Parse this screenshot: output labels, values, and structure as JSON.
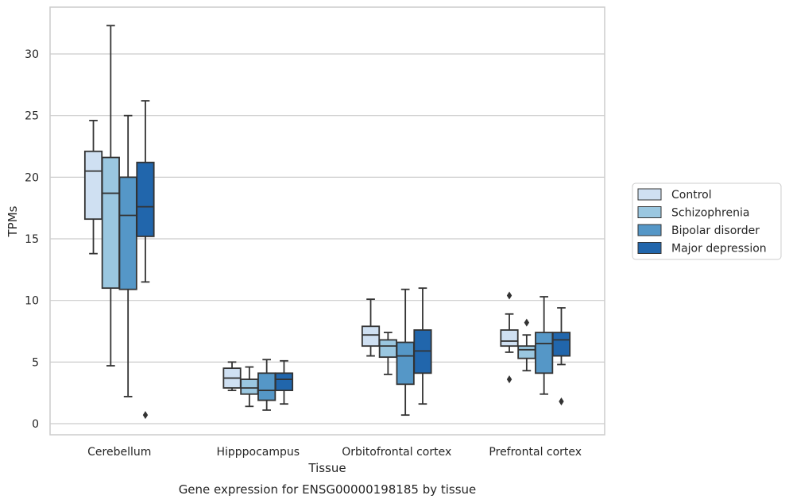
{
  "chart_data": {
    "type": "box",
    "caption": "Gene expression for ENSG00000198185 by tissue",
    "xlabel": "Tissue",
    "ylabel": "TPMs",
    "ylim": [
      -0.9,
      33.8
    ],
    "yticks": [
      0,
      5,
      10,
      15,
      20,
      25,
      30
    ],
    "grid": true,
    "legend_position": "right",
    "categories": [
      "Cerebellum",
      "Hipppocampus",
      "Orbitofrontal cortex",
      "Prefrontal cortex"
    ],
    "series": [
      {
        "name": "Control",
        "color": "#cfe0f2",
        "boxes": [
          {
            "whisker_low": 13.8,
            "q1": 16.6,
            "median": 20.5,
            "q3": 22.1,
            "whisker_high": 24.6,
            "outliers": []
          },
          {
            "whisker_low": 2.7,
            "q1": 2.9,
            "median": 3.7,
            "q3": 4.5,
            "whisker_high": 5.0,
            "outliers": []
          },
          {
            "whisker_low": 5.5,
            "q1": 6.3,
            "median": 7.2,
            "q3": 7.9,
            "whisker_high": 10.1,
            "outliers": []
          },
          {
            "whisker_low": 5.8,
            "q1": 6.3,
            "median": 6.7,
            "q3": 7.6,
            "whisker_high": 8.9,
            "outliers": [
              10.4,
              3.6
            ]
          }
        ]
      },
      {
        "name": "Schizophrenia",
        "color": "#9ac7e0",
        "boxes": [
          {
            "whisker_low": 4.7,
            "q1": 11.0,
            "median": 18.7,
            "q3": 21.6,
            "whisker_high": 32.3,
            "outliers": []
          },
          {
            "whisker_low": 1.4,
            "q1": 2.4,
            "median": 2.9,
            "q3": 3.6,
            "whisker_high": 4.6,
            "outliers": []
          },
          {
            "whisker_low": 4.0,
            "q1": 5.4,
            "median": 6.3,
            "q3": 6.8,
            "whisker_high": 7.4,
            "outliers": []
          },
          {
            "whisker_low": 4.3,
            "q1": 5.3,
            "median": 6.0,
            "q3": 6.3,
            "whisker_high": 7.2,
            "outliers": [
              8.2
            ]
          }
        ]
      },
      {
        "name": "Bipolar disorder",
        "color": "#5597c7",
        "boxes": [
          {
            "whisker_low": 2.2,
            "q1": 10.9,
            "median": 16.9,
            "q3": 20.0,
            "whisker_high": 25.0,
            "outliers": []
          },
          {
            "whisker_low": 1.1,
            "q1": 1.9,
            "median": 2.7,
            "q3": 4.1,
            "whisker_high": 5.2,
            "outliers": []
          },
          {
            "whisker_low": 0.7,
            "q1": 3.2,
            "median": 5.5,
            "q3": 6.6,
            "whisker_high": 10.9,
            "outliers": []
          },
          {
            "whisker_low": 2.4,
            "q1": 4.1,
            "median": 6.5,
            "q3": 7.4,
            "whisker_high": 10.3,
            "outliers": []
          }
        ]
      },
      {
        "name": "Major depression",
        "color": "#2166ac",
        "boxes": [
          {
            "whisker_low": 11.5,
            "q1": 15.2,
            "median": 17.6,
            "q3": 21.2,
            "whisker_high": 26.2,
            "outliers": [
              0.7
            ]
          },
          {
            "whisker_low": 1.6,
            "q1": 2.7,
            "median": 3.6,
            "q3": 4.1,
            "whisker_high": 5.1,
            "outliers": []
          },
          {
            "whisker_low": 1.6,
            "q1": 4.1,
            "median": 5.9,
            "q3": 7.6,
            "whisker_high": 11.0,
            "outliers": []
          },
          {
            "whisker_low": 4.8,
            "q1": 5.5,
            "median": 6.8,
            "q3": 7.4,
            "whisker_high": 9.4,
            "outliers": [
              1.8
            ]
          }
        ]
      }
    ]
  }
}
